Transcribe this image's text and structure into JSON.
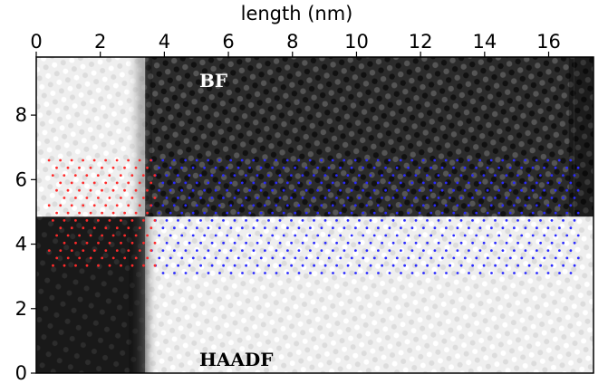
{
  "figure": {
    "x_axis_label": "length (nm)",
    "x_ticks": [
      0,
      2,
      4,
      6,
      8,
      10,
      12,
      14,
      16
    ],
    "y_ticks": [
      0,
      2,
      4,
      6,
      8
    ],
    "x_range": [
      0,
      17.4
    ],
    "y_range": [
      0,
      9.8
    ],
    "panel_labels": {
      "bf": "BF",
      "haadf": "HAADF"
    },
    "regions": {
      "dark_band_x": [
        0,
        3.4
      ],
      "bright_band_x": [
        3.4,
        16.8
      ],
      "split_y": 4.85
    },
    "dot_regions": {
      "red": {
        "x": [
          0.4,
          3.8
        ],
        "y": [
          3.2,
          6.6
        ],
        "color": "#ff2a2a"
      },
      "blue": {
        "x": [
          3.6,
          17.0
        ],
        "y": [
          3.1,
          6.6
        ],
        "color": "#2a2aff"
      }
    },
    "colors": {
      "axes": "#000000",
      "bf_dark": "#2a2a2a",
      "haadf_bright": "#f5f5f5"
    }
  }
}
